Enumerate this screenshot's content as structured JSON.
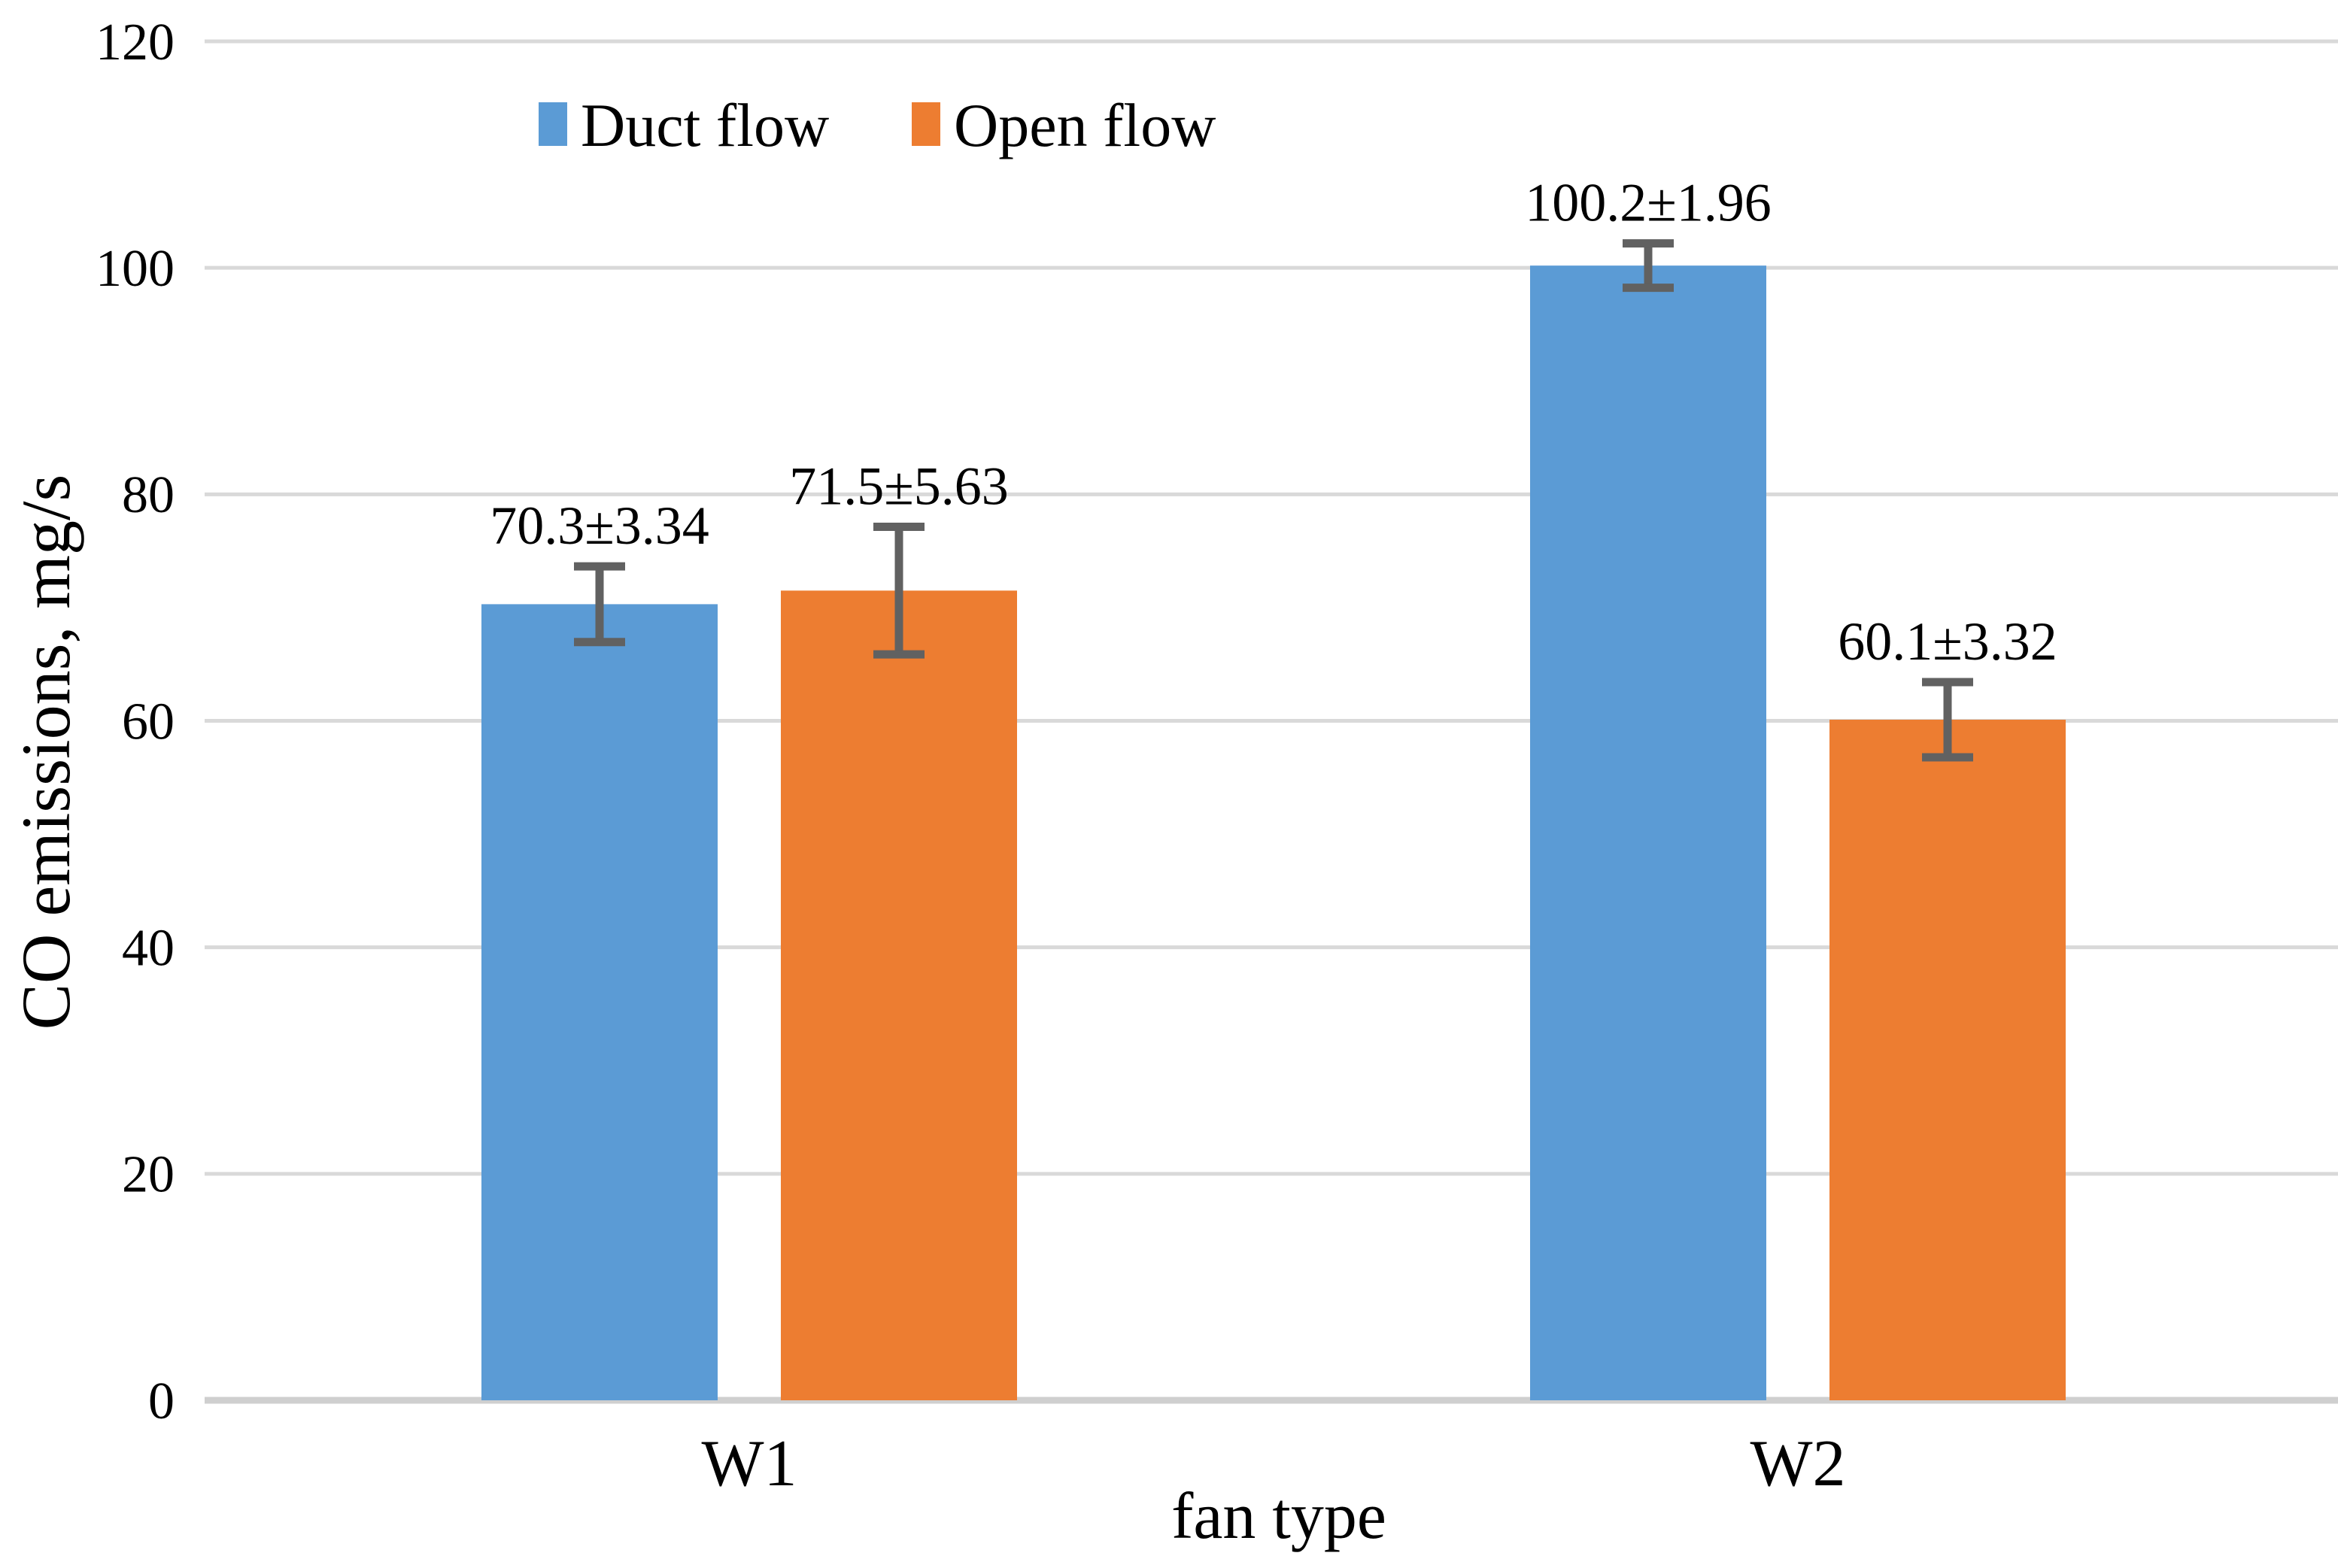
{
  "chart_data": {
    "type": "bar",
    "title": "",
    "xlabel": "fan type",
    "ylabel": "CO emissions, mg/s",
    "categories": [
      "W1",
      "W2"
    ],
    "series": [
      {
        "name": "Duct flow",
        "color": "#5B9BD5",
        "values": [
          70.3,
          100.2
        ],
        "errors": [
          3.34,
          1.96
        ],
        "labels": [
          "70.3±3.34",
          "100.2±1.96"
        ]
      },
      {
        "name": "Open flow",
        "color": "#ED7D31",
        "values": [
          71.5,
          60.1
        ],
        "errors": [
          5.63,
          3.32
        ],
        "labels": [
          "71.5±5.63",
          "60.1±3.32"
        ]
      }
    ],
    "ylim": [
      0,
      120
    ],
    "yticks": [
      0,
      20,
      40,
      60,
      80,
      100,
      120
    ],
    "grid": true,
    "legend_position": "top",
    "colors": {
      "gridline": "#D9D9D9",
      "axis_line": "#CFCFCF",
      "error_bar": "#616161",
      "text": "#000000"
    }
  }
}
